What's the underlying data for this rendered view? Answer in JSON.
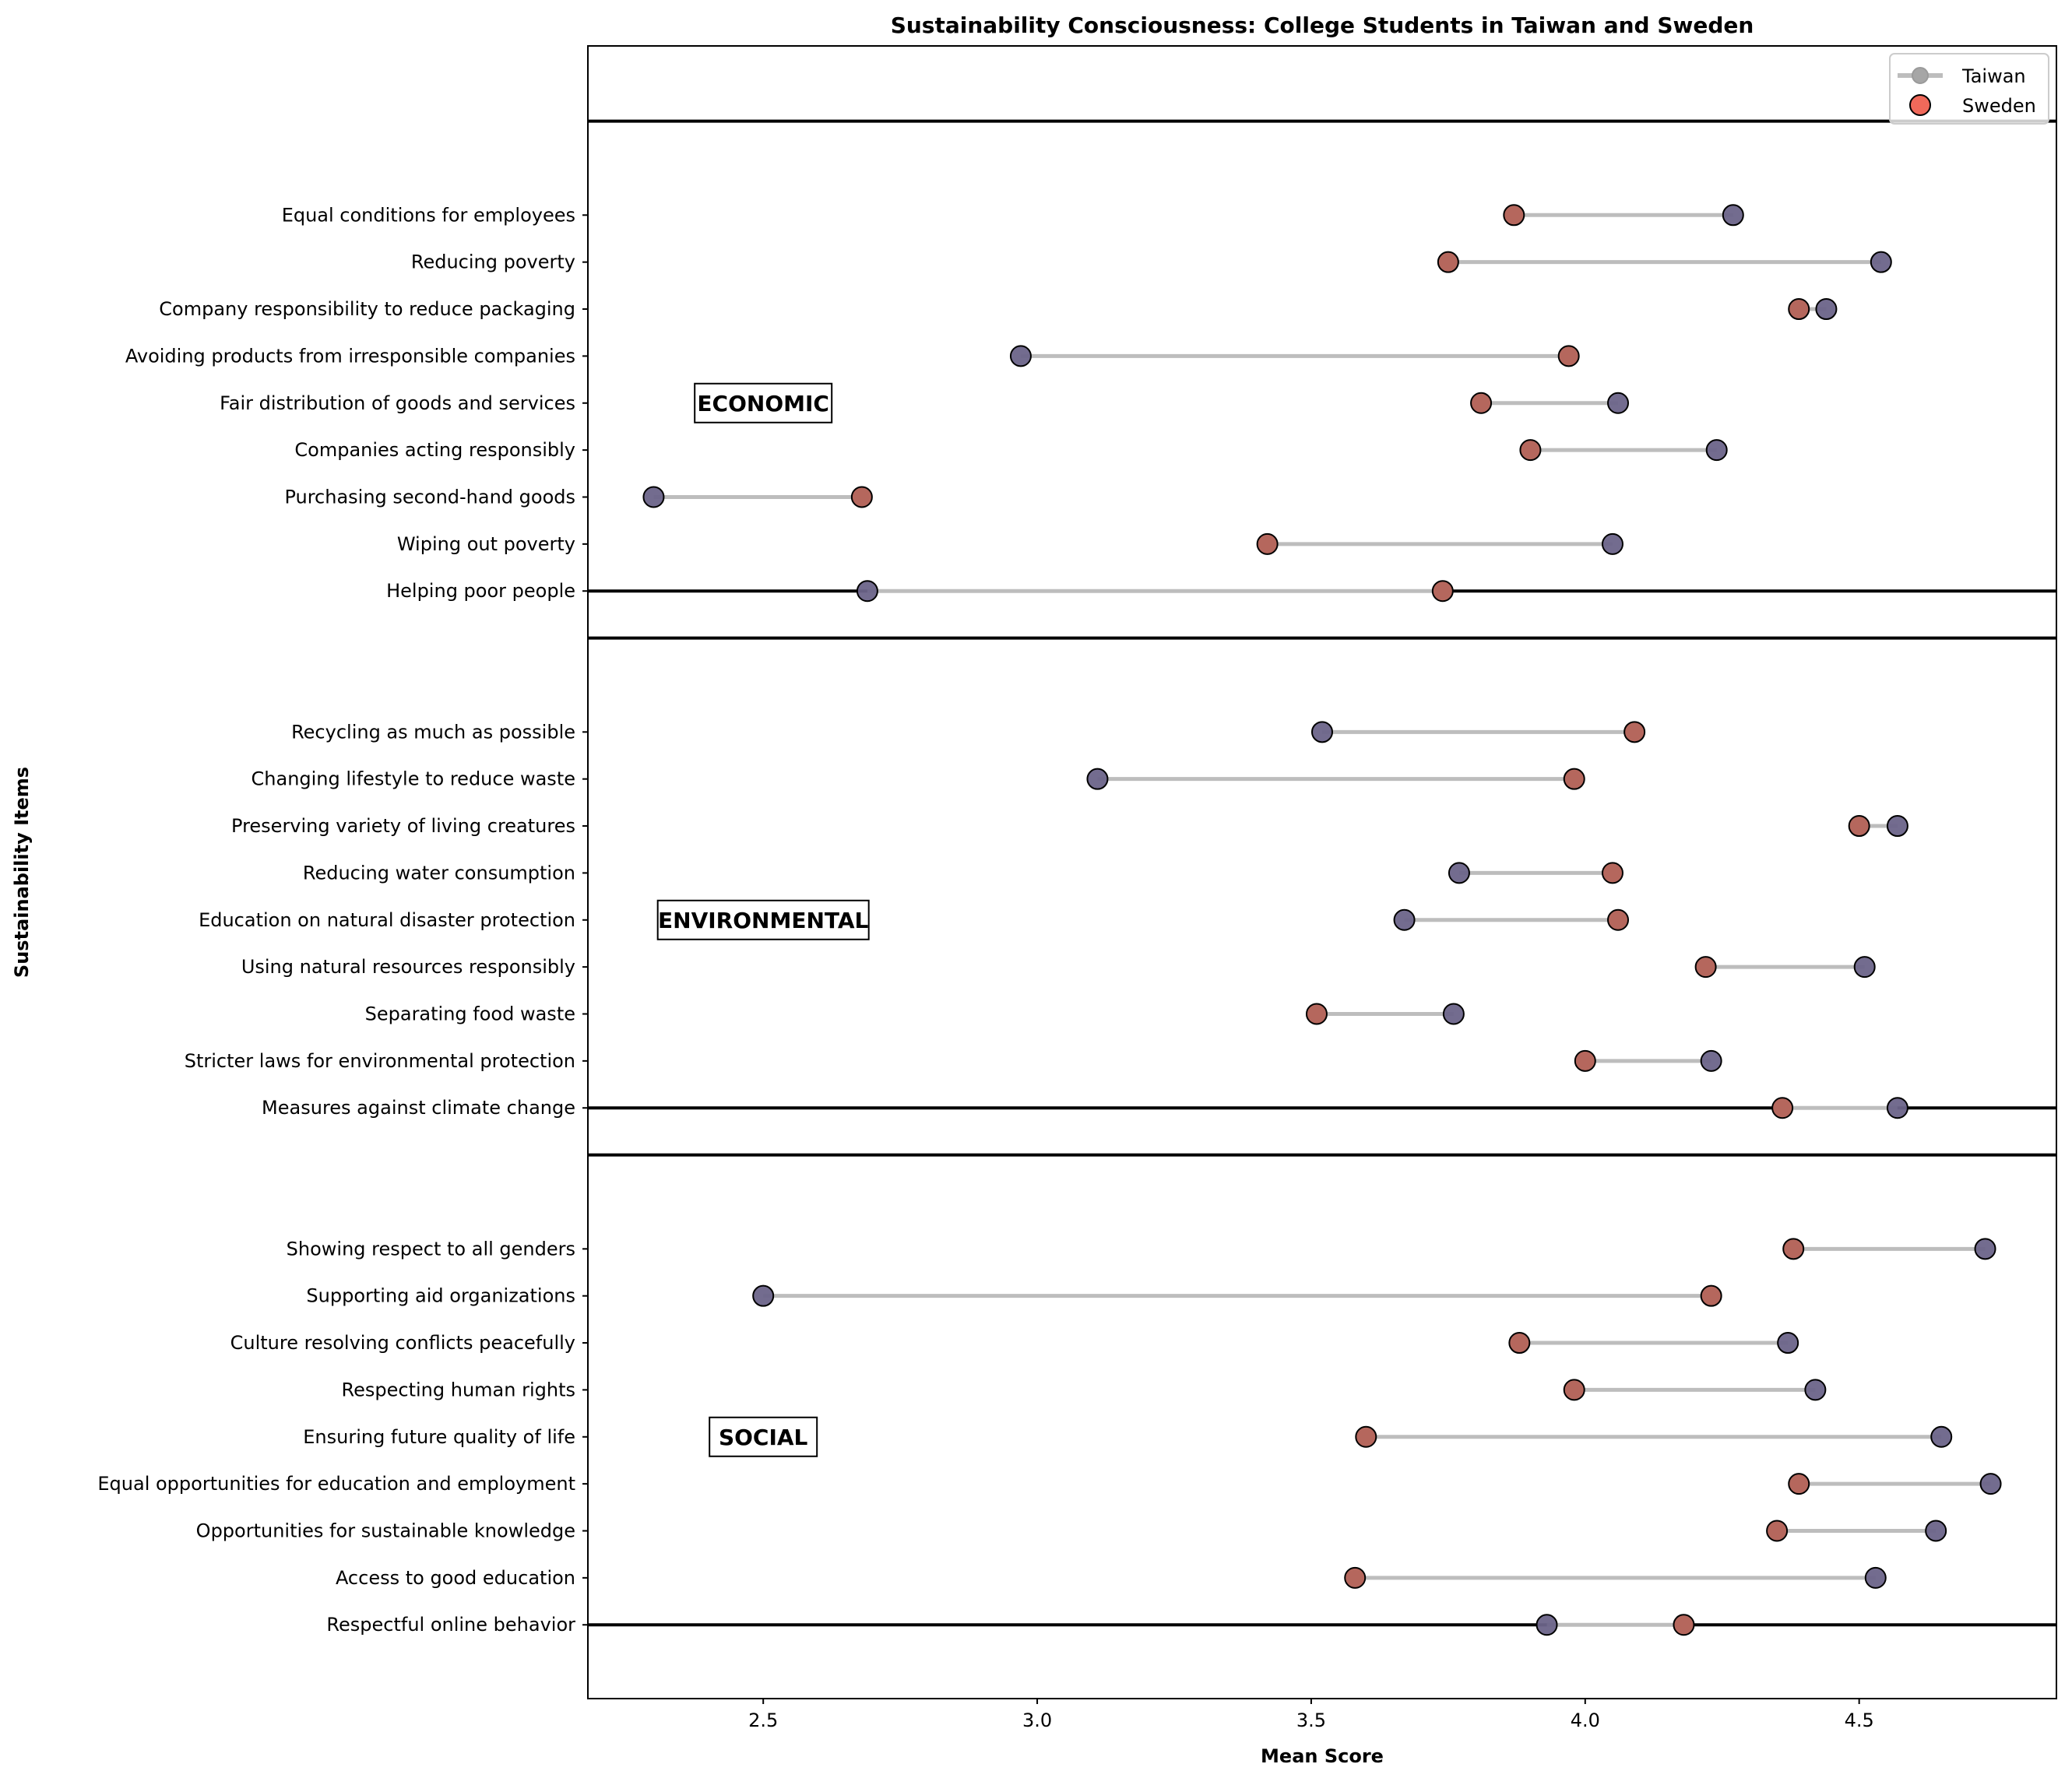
{
  "chart_data": {
    "type": "dumbbell",
    "title": "Sustainability Consciousness: College Students in Taiwan and Sweden",
    "xlabel": "Mean Score",
    "ylabel": "Sustainability Items",
    "xlim": [
      2.18,
      4.86
    ],
    "xticks": [
      2.5,
      3.0,
      3.5,
      4.0,
      4.5
    ],
    "xtick_labels": [
      "2.5",
      "3.0",
      "3.5",
      "4.0",
      "4.5"
    ],
    "grid": false,
    "legend": {
      "placement": "top-right",
      "entries": [
        {
          "name": "Taiwan",
          "marker": "line-circle"
        },
        {
          "name": "Sweden",
          "marker": "circle"
        }
      ]
    },
    "colors": {
      "Taiwan": "#6b6489",
      "Sweden": "#f0695a",
      "connector": "#bdbdbd",
      "divider": "#000000"
    },
    "series_names": [
      "Taiwan",
      "Sweden"
    ],
    "groups": [
      {
        "name": "ECONOMIC",
        "items": [
          {
            "label": "Equal conditions for employees",
            "Taiwan": 4.27,
            "Sweden": 3.87
          },
          {
            "label": "Reducing poverty",
            "Taiwan": 4.54,
            "Sweden": 3.75
          },
          {
            "label": "Company responsibility to reduce packaging",
            "Taiwan": 4.44,
            "Sweden": 4.39
          },
          {
            "label": "Avoiding products from irresponsible companies",
            "Taiwan": 2.97,
            "Sweden": 3.97
          },
          {
            "label": "Fair distribution of goods and services",
            "Taiwan": 4.06,
            "Sweden": 3.81
          },
          {
            "label": "Companies acting responsibly",
            "Taiwan": 4.24,
            "Sweden": 3.9
          },
          {
            "label": "Purchasing second-hand goods",
            "Taiwan": 2.3,
            "Sweden": 2.68
          },
          {
            "label": "Wiping out poverty",
            "Taiwan": 4.05,
            "Sweden": 3.42
          },
          {
            "label": "Helping poor people",
            "Taiwan": 2.69,
            "Sweden": 3.74
          }
        ]
      },
      {
        "name": "ENVIRONMENTAL",
        "items": [
          {
            "label": "Recycling as much as possible",
            "Taiwan": 3.52,
            "Sweden": 4.09
          },
          {
            "label": "Changing lifestyle to reduce waste",
            "Taiwan": 3.11,
            "Sweden": 3.98
          },
          {
            "label": "Preserving variety of living creatures",
            "Taiwan": 4.57,
            "Sweden": 4.5
          },
          {
            "label": "Reducing water consumption",
            "Taiwan": 3.77,
            "Sweden": 4.05
          },
          {
            "label": "Education on natural disaster protection",
            "Taiwan": 3.67,
            "Sweden": 4.06
          },
          {
            "label": "Using natural resources responsibly",
            "Taiwan": 4.51,
            "Sweden": 4.22
          },
          {
            "label": "Separating food waste",
            "Taiwan": 3.76,
            "Sweden": 3.51
          },
          {
            "label": "Stricter laws for environmental protection",
            "Taiwan": 4.23,
            "Sweden": 4.0
          },
          {
            "label": "Measures against climate change",
            "Taiwan": 4.57,
            "Sweden": 4.36
          }
        ]
      },
      {
        "name": "SOCIAL",
        "items": [
          {
            "label": "Showing respect to all genders",
            "Taiwan": 4.73,
            "Sweden": 4.38
          },
          {
            "label": "Supporting aid organizations",
            "Taiwan": 2.5,
            "Sweden": 4.23
          },
          {
            "label": "Culture resolving conflicts peacefully",
            "Taiwan": 4.37,
            "Sweden": 3.88
          },
          {
            "label": "Respecting human rights",
            "Taiwan": 4.42,
            "Sweden": 3.98
          },
          {
            "label": "Ensuring future quality of life",
            "Taiwan": 4.65,
            "Sweden": 3.6
          },
          {
            "label": "Equal opportunities for education and employment",
            "Taiwan": 4.74,
            "Sweden": 4.39
          },
          {
            "label": "Opportunities for sustainable knowledge",
            "Taiwan": 4.64,
            "Sweden": 4.35
          },
          {
            "label": "Access to good education",
            "Taiwan": 4.53,
            "Sweden": 3.58
          },
          {
            "label": "Respectful online behavior",
            "Taiwan": 3.93,
            "Sweden": 4.18
          }
        ]
      }
    ]
  }
}
